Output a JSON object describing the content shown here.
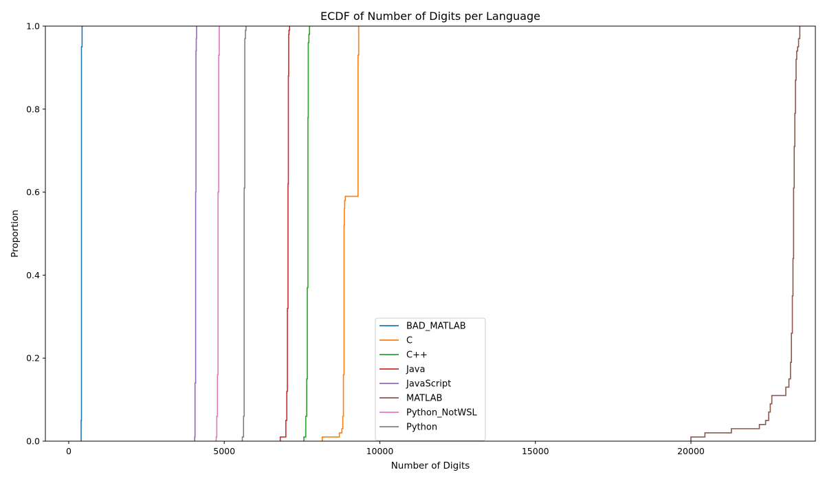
{
  "chart_data": {
    "type": "line",
    "step": true,
    "title": "ECDF of Number of Digits per Language",
    "xlabel": "Number of Digits",
    "ylabel": "Proportion",
    "xlim": [
      -750,
      24000
    ],
    "ylim": [
      0,
      1
    ],
    "xticks": [
      0,
      5000,
      10000,
      15000,
      20000
    ],
    "yticks": [
      0.0,
      0.2,
      0.4,
      0.6,
      0.8,
      1.0
    ],
    "xtick_labels": [
      "0",
      "5000",
      "10000",
      "15000",
      "20000"
    ],
    "ytick_labels": [
      "0.0",
      "0.2",
      "0.4",
      "0.6",
      "0.8",
      "1.0"
    ],
    "grid": false,
    "legend_position": "lower-center",
    "series": [
      {
        "name": "BAD_MATLAB",
        "color": "#1f77b4",
        "x": [
          400,
          400,
          410,
          410,
          430,
          430
        ],
        "y": [
          0,
          0.05,
          0.05,
          0.95,
          0.95,
          1.0
        ]
      },
      {
        "name": "C",
        "color": "#ff7f0e",
        "x": [
          8150,
          8150,
          8700,
          8700,
          8780,
          8780,
          8810,
          8810,
          8830,
          8830,
          8850,
          8850,
          8860,
          8860,
          8870,
          8870,
          8890,
          8890,
          9300,
          9300,
          9320,
          9320
        ],
        "y": [
          0,
          0.01,
          0.01,
          0.02,
          0.02,
          0.03,
          0.03,
          0.06,
          0.06,
          0.16,
          0.16,
          0.52,
          0.52,
          0.56,
          0.56,
          0.58,
          0.58,
          0.59,
          0.59,
          0.93,
          0.93,
          1.0
        ]
      },
      {
        "name": "C++",
        "color": "#2ca02c",
        "x": [
          7560,
          7560,
          7620,
          7620,
          7650,
          7650,
          7670,
          7670,
          7690,
          7690,
          7700,
          7700,
          7720,
          7720,
          7740,
          7740
        ],
        "y": [
          0,
          0.01,
          0.01,
          0.06,
          0.06,
          0.15,
          0.15,
          0.37,
          0.37,
          0.78,
          0.78,
          0.96,
          0.96,
          0.98,
          0.98,
          1.0
        ]
      },
      {
        "name": "Java",
        "color": "#d62728",
        "x": [
          6800,
          6800,
          6980,
          6980,
          7010,
          7010,
          7030,
          7030,
          7050,
          7050,
          7060,
          7060,
          7070,
          7070,
          7080,
          7080,
          7100,
          7100
        ],
        "y": [
          0,
          0.01,
          0.01,
          0.05,
          0.05,
          0.12,
          0.12,
          0.32,
          0.32,
          0.62,
          0.62,
          0.88,
          0.88,
          0.98,
          0.98,
          0.99,
          0.99,
          1.0
        ]
      },
      {
        "name": "JavaScript",
        "color": "#9467bd",
        "x": [
          4050,
          4050,
          4060,
          4060,
          4080,
          4080,
          4090,
          4090,
          4100,
          4100,
          4110,
          4110
        ],
        "y": [
          0,
          0.01,
          0.01,
          0.14,
          0.14,
          0.6,
          0.6,
          0.94,
          0.94,
          0.97,
          0.97,
          1.0
        ]
      },
      {
        "name": "MATLAB",
        "color": "#8c564b",
        "x": [
          20000,
          20000,
          20450,
          20450,
          21300,
          21300,
          22200,
          22200,
          22400,
          22400,
          22500,
          22500,
          22550,
          22550,
          22600,
          22600,
          23050,
          23050,
          23150,
          23150,
          23200,
          23200,
          23230,
          23230,
          23260,
          23260,
          23280,
          23280,
          23300,
          23300,
          23320,
          23320,
          23340,
          23340,
          23360,
          23360,
          23380,
          23380,
          23400,
          23400,
          23430,
          23430,
          23460,
          23460,
          23500,
          23500
        ],
        "y": [
          0,
          0.01,
          0.01,
          0.02,
          0.02,
          0.03,
          0.03,
          0.04,
          0.04,
          0.05,
          0.05,
          0.07,
          0.07,
          0.09,
          0.09,
          0.11,
          0.11,
          0.13,
          0.13,
          0.15,
          0.15,
          0.19,
          0.19,
          0.26,
          0.26,
          0.35,
          0.35,
          0.44,
          0.44,
          0.61,
          0.61,
          0.71,
          0.71,
          0.79,
          0.79,
          0.87,
          0.87,
          0.92,
          0.92,
          0.94,
          0.94,
          0.95,
          0.95,
          0.97,
          0.97,
          1.0
        ]
      },
      {
        "name": "Python_NotWSL",
        "color": "#e377c2",
        "x": [
          4740,
          4740,
          4760,
          4760,
          4780,
          4780,
          4800,
          4800,
          4820,
          4820,
          4840,
          4840
        ],
        "y": [
          0,
          0.01,
          0.01,
          0.06,
          0.06,
          0.16,
          0.16,
          0.6,
          0.6,
          0.93,
          0.93,
          1.0
        ]
      },
      {
        "name": "Python",
        "color": "#7f7f7f",
        "x": [
          5580,
          5580,
          5620,
          5620,
          5640,
          5640,
          5660,
          5660,
          5680,
          5680,
          5700,
          5700
        ],
        "y": [
          0,
          0.01,
          0.01,
          0.06,
          0.06,
          0.61,
          0.61,
          0.97,
          0.97,
          0.99,
          0.99,
          1.0
        ]
      }
    ]
  }
}
